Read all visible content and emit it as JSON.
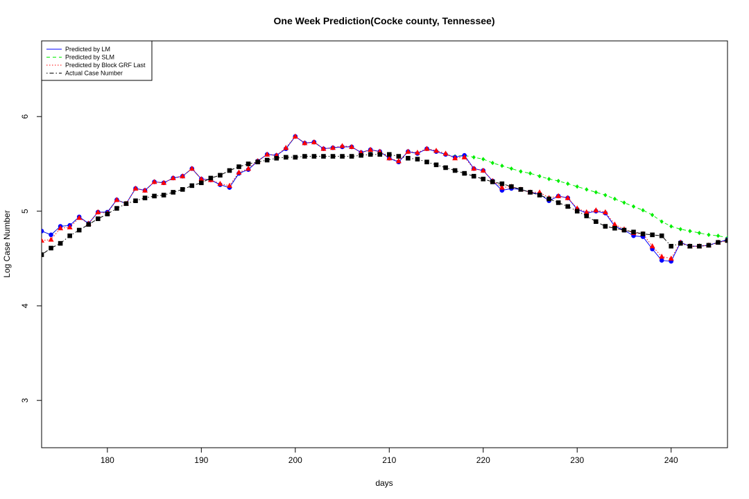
{
  "chart_data": {
    "type": "line",
    "title": "One Week Prediction(Cocke county, Tennessee)",
    "xlabel": "days",
    "ylabel": "Log Case Number",
    "xlim": [
      173,
      246
    ],
    "ylim": [
      2.5,
      6.8
    ],
    "xticks": [
      180,
      190,
      200,
      210,
      220,
      230,
      240
    ],
    "yticks": [
      3,
      4,
      5,
      6
    ],
    "grid": false,
    "legend_position": "top-left",
    "x": [
      173,
      174,
      175,
      176,
      177,
      178,
      179,
      180,
      181,
      182,
      183,
      184,
      185,
      186,
      187,
      188,
      189,
      190,
      191,
      192,
      193,
      194,
      195,
      196,
      197,
      198,
      199,
      200,
      201,
      202,
      203,
      204,
      205,
      206,
      207,
      208,
      209,
      210,
      211,
      212,
      213,
      214,
      215,
      216,
      217,
      218,
      219,
      220,
      221,
      222,
      223,
      224,
      225,
      226,
      227,
      228,
      229,
      230,
      231,
      232,
      233,
      234,
      235,
      236,
      237,
      238,
      239,
      240,
      241,
      242,
      243,
      244,
      245,
      246
    ],
    "series": [
      {
        "name": "Predicted by LM",
        "color": "#0000ff",
        "line": "solid",
        "marker": "circle",
        "values": [
          4.79,
          4.75,
          4.84,
          4.85,
          4.94,
          4.87,
          4.99,
          4.99,
          5.12,
          5.08,
          5.24,
          5.22,
          5.31,
          5.3,
          5.35,
          5.37,
          5.45,
          5.34,
          5.33,
          5.28,
          5.25,
          5.4,
          5.44,
          5.53,
          5.6,
          5.59,
          5.66,
          5.79,
          5.72,
          5.73,
          5.66,
          5.67,
          5.68,
          5.68,
          5.62,
          5.65,
          5.63,
          5.56,
          5.52,
          5.63,
          5.61,
          5.66,
          5.63,
          5.6,
          5.57,
          5.59,
          5.45,
          5.43,
          5.32,
          5.22,
          5.24,
          5.23,
          5.2,
          5.18,
          5.11,
          5.16,
          5.14,
          5.02,
          4.98,
          5.0,
          4.98,
          4.84,
          4.8,
          4.74,
          4.73,
          4.6,
          4.48,
          4.47,
          4.67,
          4.63,
          4.63,
          4.64,
          4.67,
          4.7
        ]
      },
      {
        "name": "Predicted by SLM",
        "color": "#00ee00",
        "line": "dashed",
        "marker": "diamond",
        "values": [
          4.79,
          4.75,
          4.84,
          4.85,
          4.94,
          4.87,
          4.99,
          4.99,
          5.12,
          5.08,
          5.24,
          5.22,
          5.31,
          5.3,
          5.35,
          5.37,
          5.45,
          5.34,
          5.33,
          5.28,
          5.25,
          5.4,
          5.44,
          5.53,
          5.6,
          5.59,
          5.66,
          5.79,
          5.72,
          5.73,
          5.66,
          5.67,
          5.68,
          5.68,
          5.62,
          5.65,
          5.63,
          5.56,
          5.52,
          5.63,
          5.61,
          5.66,
          5.63,
          5.6,
          5.58,
          5.59,
          5.57,
          5.55,
          5.51,
          5.48,
          5.45,
          5.42,
          5.4,
          5.37,
          5.34,
          5.32,
          5.29,
          5.26,
          5.23,
          5.2,
          5.17,
          5.13,
          5.09,
          5.05,
          5.01,
          4.96,
          4.89,
          4.84,
          4.81,
          4.79,
          4.77,
          4.75,
          4.74,
          4.72
        ]
      },
      {
        "name": "Predicted by Block GRF Last",
        "color": "#ff0000",
        "line": "dotted",
        "marker": "triangle",
        "values": [
          4.69,
          4.7,
          4.82,
          4.83,
          4.93,
          4.87,
          4.99,
          4.98,
          5.12,
          5.08,
          5.24,
          5.22,
          5.31,
          5.3,
          5.35,
          5.37,
          5.45,
          5.34,
          5.33,
          5.29,
          5.27,
          5.41,
          5.45,
          5.53,
          5.6,
          5.59,
          5.67,
          5.79,
          5.72,
          5.73,
          5.66,
          5.67,
          5.69,
          5.68,
          5.62,
          5.65,
          5.63,
          5.56,
          5.53,
          5.63,
          5.62,
          5.66,
          5.64,
          5.61,
          5.56,
          5.57,
          5.45,
          5.43,
          5.32,
          5.25,
          5.26,
          5.23,
          5.2,
          5.2,
          5.14,
          5.16,
          5.14,
          5.03,
          4.99,
          5.01,
          4.99,
          4.86,
          4.81,
          4.77,
          4.76,
          4.63,
          4.52,
          4.5,
          4.67,
          4.63,
          4.63,
          4.64,
          4.67,
          4.69
        ]
      },
      {
        "name": "Actual Case Number",
        "color": "#000000",
        "line": "dotdash",
        "marker": "square",
        "values": [
          4.54,
          4.61,
          4.66,
          4.74,
          4.8,
          4.86,
          4.92,
          4.97,
          5.03,
          5.08,
          5.11,
          5.14,
          5.16,
          5.17,
          5.2,
          5.23,
          5.27,
          5.3,
          5.35,
          5.38,
          5.43,
          5.47,
          5.5,
          5.52,
          5.54,
          5.56,
          5.57,
          5.57,
          5.58,
          5.58,
          5.58,
          5.58,
          5.58,
          5.58,
          5.59,
          5.6,
          5.6,
          5.6,
          5.58,
          5.56,
          5.55,
          5.52,
          5.49,
          5.46,
          5.43,
          5.4,
          5.37,
          5.34,
          5.31,
          5.29,
          5.26,
          5.23,
          5.2,
          5.17,
          5.13,
          5.09,
          5.05,
          5.0,
          4.95,
          4.89,
          4.84,
          4.82,
          4.8,
          4.78,
          4.76,
          4.75,
          4.74,
          4.63,
          4.66,
          4.63,
          4.63,
          4.64,
          4.67,
          4.69
        ]
      }
    ]
  }
}
